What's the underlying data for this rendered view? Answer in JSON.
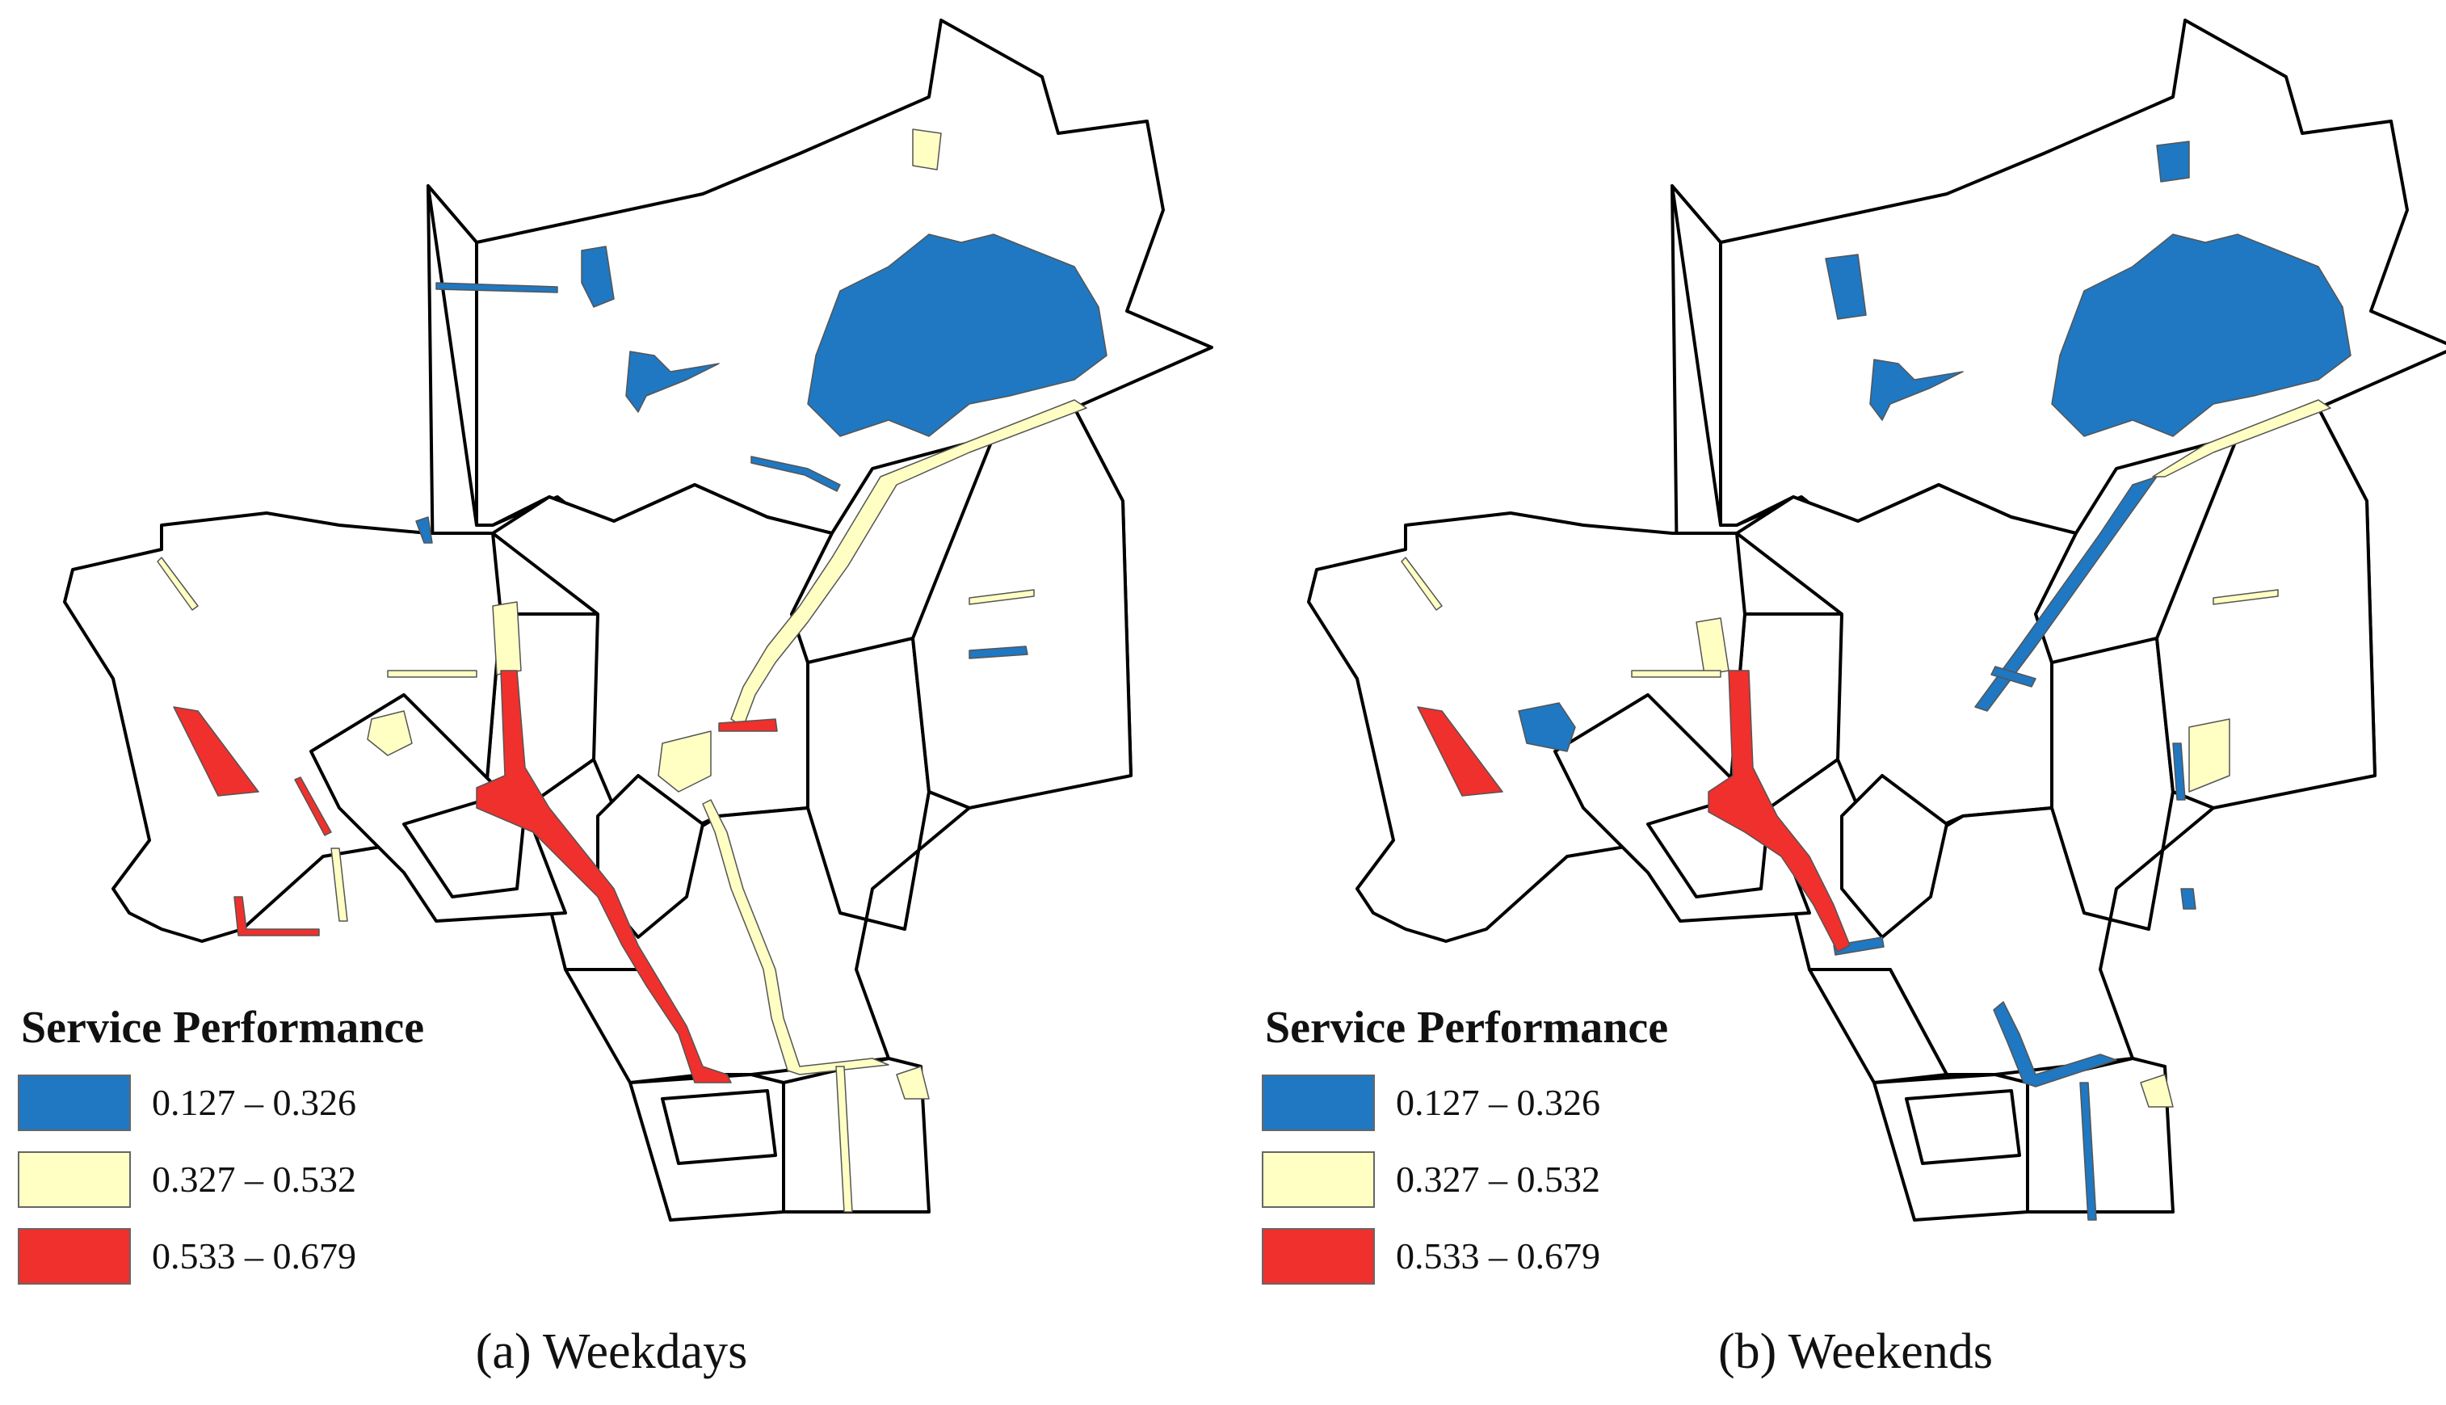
{
  "legend": {
    "title": "Service Performance",
    "classes": [
      {
        "range": "0.127 – 0.326",
        "color": "#1f78c1"
      },
      {
        "range": "0.327 – 0.532",
        "color": "#ffffc4"
      },
      {
        "range": "0.533 – 0.679",
        "color": "#f0302c"
      }
    ]
  },
  "panels": [
    {
      "caption": "(a) Weekdays"
    },
    {
      "caption": "(b) Weekends"
    }
  ]
}
